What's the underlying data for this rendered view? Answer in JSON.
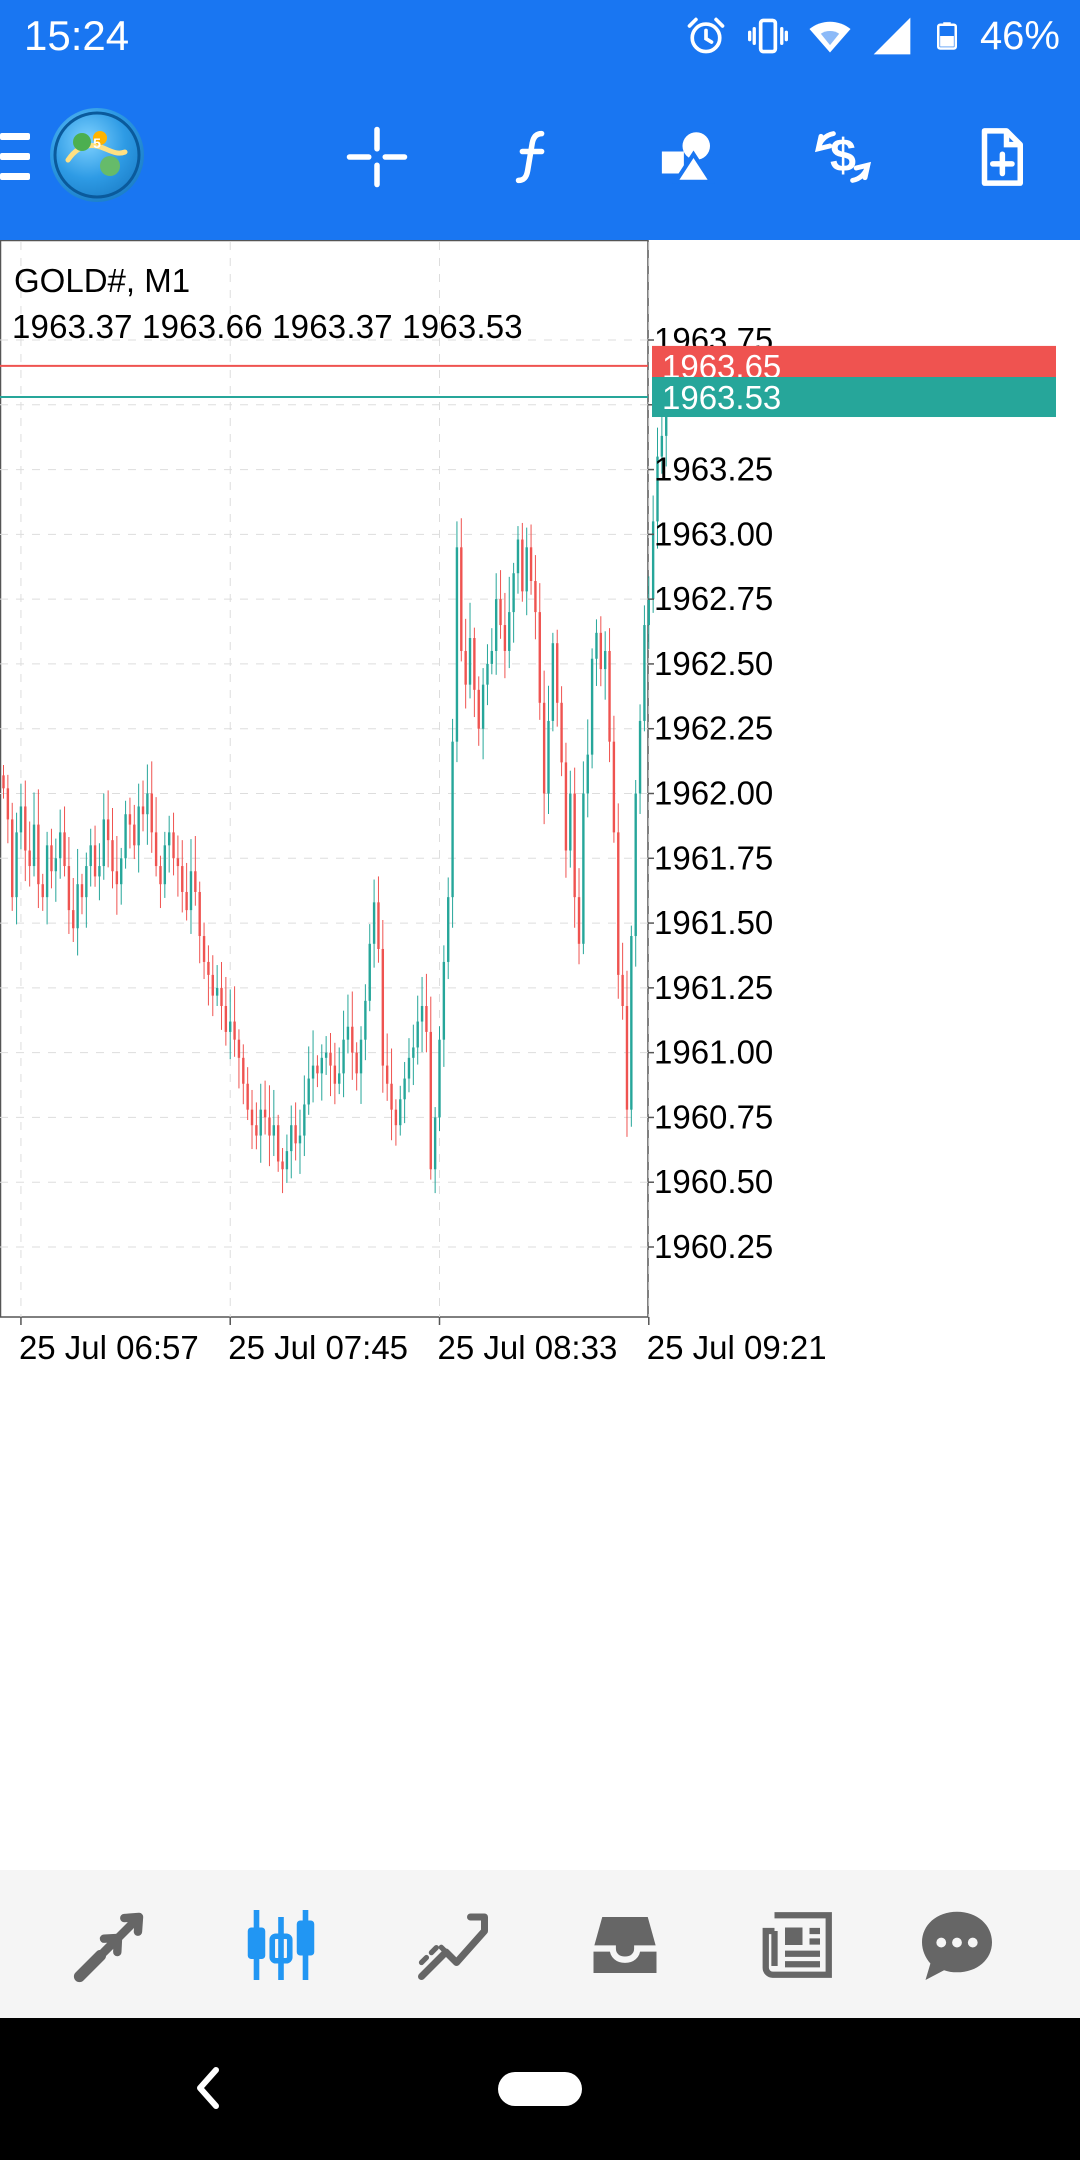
{
  "status_bar": {
    "time": "15:24",
    "battery": "46%",
    "icons": [
      "alarm-icon",
      "vibrate-icon",
      "wifi-icon",
      "signal-icon",
      "battery-icon"
    ]
  },
  "toolbar": {
    "icons": [
      "menu-icon",
      "app-logo-icon",
      "crosshair-icon",
      "indicators-icon",
      "objects-icon",
      "symbols-icon",
      "new-order-icon"
    ]
  },
  "chart": {
    "symbol_timeframe": "GOLD#, M1",
    "ohlc": "1963.37 1963.66 1963.37 1963.53",
    "ask_label": "1963.65",
    "bid_label": "1963.53",
    "colors": {
      "up": "#26a69a",
      "down": "#ef5350",
      "ask_line": "#ef5350",
      "bid_line": "#26a69a",
      "grid": "#dddddd",
      "toolbar": "#1976f2"
    }
  },
  "chart_data": {
    "type": "candlestick",
    "title": "GOLD#, M1",
    "ylim": [
      1960.0,
      1963.95
    ],
    "y_ticks": [
      "1963.75",
      "1963.50",
      "1963.25",
      "1963.00",
      "1962.75",
      "1962.50",
      "1962.25",
      "1962.00",
      "1961.75",
      "1961.50",
      "1961.25",
      "1961.00",
      "1960.75",
      "1960.50",
      "1960.25"
    ],
    "x_tick_labels": [
      "25 Jul 06:57",
      "25 Jul 07:45",
      "25 Jul 08:33",
      "25 Jul 09:21"
    ],
    "x_tick_index": [
      4,
      52,
      100,
      148
    ],
    "ask": 1963.65,
    "bid": 1963.53,
    "closes": [
      1962.02,
      1961.9,
      1961.6,
      1961.85,
      1961.95,
      1961.78,
      1961.72,
      1961.88,
      1961.65,
      1961.6,
      1961.8,
      1961.7,
      1961.75,
      1961.85,
      1961.72,
      1961.55,
      1961.48,
      1961.65,
      1961.6,
      1961.72,
      1961.8,
      1961.68,
      1961.72,
      1961.9,
      1961.82,
      1961.7,
      1961.65,
      1961.75,
      1961.92,
      1961.88,
      1961.8,
      1961.95,
      1961.92,
      1962.0,
      1961.85,
      1961.72,
      1961.65,
      1961.8,
      1961.85,
      1961.75,
      1961.72,
      1961.62,
      1961.55,
      1961.7,
      1961.62,
      1961.45,
      1961.35,
      1961.3,
      1961.22,
      1961.25,
      1961.18,
      1961.08,
      1961.12,
      1961.05,
      1960.98,
      1960.88,
      1960.78,
      1960.72,
      1960.68,
      1960.78,
      1960.75,
      1960.68,
      1960.72,
      1960.58,
      1960.55,
      1960.62,
      1960.72,
      1960.65,
      1960.68,
      1960.8,
      1960.9,
      1960.95,
      1960.92,
      1960.98,
      1961.0,
      1960.95,
      1960.88,
      1960.92,
      1961.05,
      1961.1,
      1961.0,
      1960.92,
      1961.05,
      1961.2,
      1961.42,
      1961.58,
      1961.4,
      1960.95,
      1960.88,
      1960.78,
      1960.72,
      1960.82,
      1960.9,
      1960.98,
      1961.02,
      1961.12,
      1961.18,
      1961.08,
      1960.55,
      1960.75,
      1961.05,
      1961.35,
      1961.6,
      1962.2,
      1962.95,
      1962.55,
      1962.42,
      1962.6,
      1962.4,
      1962.25,
      1962.42,
      1962.5,
      1962.55,
      1962.75,
      1962.65,
      1962.55,
      1962.7,
      1962.85,
      1962.98,
      1962.78,
      1962.95,
      1962.82,
      1962.7,
      1962.35,
      1962.0,
      1962.28,
      1962.58,
      1962.35,
      1962.12,
      1961.78,
      1962.0,
      1961.6,
      1961.42,
      1962.0,
      1962.15,
      1962.52,
      1962.62,
      1962.48,
      1962.55,
      1962.2,
      1961.85,
      1961.3,
      1961.18,
      1960.78,
      1961.45,
      1962.0,
      1962.28,
      1962.65,
      1962.75,
      1963.05,
      1963.3,
      1963.38,
      1963.53
    ]
  },
  "bottom_nav": {
    "items": [
      "quotes-icon",
      "chart-icon",
      "trade-icon",
      "history-icon",
      "news-icon",
      "messages-icon"
    ],
    "active": "chart-icon"
  },
  "system_nav": {
    "items": [
      "back-icon",
      "home-pill"
    ]
  }
}
